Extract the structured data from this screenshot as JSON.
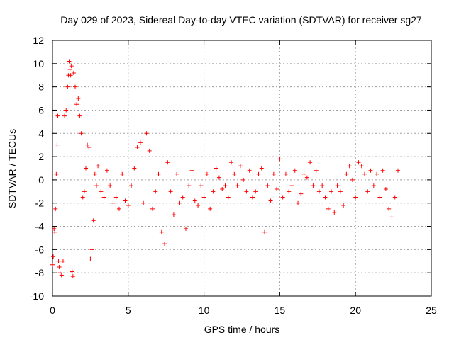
{
  "chart_data": {
    "type": "scatter",
    "title": "Day 029 of 2023, Sidereal Day-to-day VTEC variation (SDTVAR) for receiver sg27",
    "xlabel": "GPS time / hours",
    "ylabel": "SDTVAR / TECUs",
    "xlim": [
      0,
      25
    ],
    "ylim": [
      -10,
      12
    ],
    "xticks": [
      0,
      5,
      10,
      15,
      20,
      25
    ],
    "yticks": [
      -10,
      -8,
      -6,
      -4,
      -2,
      0,
      2,
      4,
      6,
      8,
      10,
      12
    ],
    "xtick_labels": [
      "0",
      "5",
      "10",
      "15",
      "20",
      "25"
    ],
    "ytick_labels": [
      "-10",
      "-8",
      "-6",
      "-4",
      "-2",
      "0",
      "2",
      "4",
      "6",
      "8",
      "10",
      "12"
    ],
    "grid": true,
    "marker": "+",
    "color": "#ff0000",
    "series": [
      {
        "name": "SDTVAR sg27",
        "x": [
          0.0,
          0.05,
          0.1,
          0.15,
          0.2,
          0.25,
          0.3,
          0.35,
          0.4,
          0.45,
          0.5,
          0.6,
          0.7,
          0.8,
          0.9,
          1.0,
          1.05,
          1.1,
          1.15,
          1.2,
          1.25,
          1.3,
          1.35,
          1.4,
          1.5,
          1.6,
          1.7,
          1.8,
          1.9,
          2.0,
          2.1,
          2.2,
          2.3,
          2.4,
          2.5,
          2.6,
          2.7,
          2.8,
          2.9,
          3.0,
          3.2,
          3.4,
          3.6,
          3.8,
          4.0,
          4.2,
          4.4,
          4.6,
          4.8,
          5.0,
          5.2,
          5.4,
          5.6,
          5.8,
          6.0,
          6.2,
          6.4,
          6.6,
          6.8,
          7.0,
          7.2,
          7.4,
          7.6,
          7.8,
          8.0,
          8.2,
          8.4,
          8.6,
          8.8,
          9.0,
          9.2,
          9.4,
          9.6,
          9.8,
          10.0,
          10.2,
          10.4,
          10.6,
          10.8,
          11.0,
          11.2,
          11.4,
          11.6,
          11.8,
          12.0,
          12.2,
          12.4,
          12.6,
          12.8,
          13.0,
          13.2,
          13.4,
          13.6,
          13.8,
          14.0,
          14.2,
          14.4,
          14.6,
          14.8,
          15.0,
          15.2,
          15.4,
          15.6,
          15.8,
          16.0,
          16.2,
          16.4,
          16.6,
          16.8,
          17.0,
          17.2,
          17.4,
          17.6,
          17.8,
          18.0,
          18.2,
          18.4,
          18.6,
          18.8,
          19.0,
          19.2,
          19.4,
          19.6,
          19.8,
          20.0,
          20.2,
          20.4,
          20.6,
          20.8,
          21.0,
          21.2,
          21.4,
          21.6,
          21.8,
          22.0,
          22.2,
          22.4,
          22.6,
          22.8
        ],
        "y": [
          -7.3,
          -6.6,
          -4.2,
          -4.5,
          -2.5,
          0.5,
          3.0,
          5.5,
          -7.0,
          -7.5,
          -8.0,
          -8.2,
          -7.0,
          5.5,
          6.0,
          8.0,
          9.0,
          10.2,
          9.5,
          9.0,
          9.8,
          -7.9,
          -8.3,
          9.2,
          8.0,
          6.5,
          7.0,
          5.5,
          4.0,
          -1.5,
          -1.0,
          1.0,
          3.0,
          2.8,
          -6.8,
          -6.0,
          -3.5,
          0.5,
          -0.5,
          1.2,
          -1.0,
          -1.5,
          0.8,
          -0.5,
          -2.0,
          -1.5,
          -2.5,
          0.5,
          -1.8,
          -2.2,
          -0.5,
          1.0,
          2.8,
          3.2,
          -2.0,
          4.0,
          2.5,
          -2.5,
          -1.0,
          0.5,
          -4.5,
          -5.5,
          1.5,
          -1.0,
          -3.0,
          0.5,
          -2.0,
          -1.5,
          -4.2,
          -0.5,
          0.8,
          -1.8,
          -2.2,
          -0.5,
          -1.5,
          0.5,
          -2.5,
          -1.0,
          1.0,
          0.2,
          -0.8,
          -0.5,
          -1.5,
          1.5,
          0.5,
          -0.5,
          1.2,
          0.0,
          -1.0,
          0.8,
          -1.5,
          -1.0,
          0.5,
          1.0,
          -4.5,
          -0.5,
          -1.8,
          0.5,
          -0.8,
          1.8,
          -1.5,
          0.5,
          -1.0,
          -0.5,
          0.8,
          -2.0,
          -1.2,
          0.5,
          0.2,
          1.5,
          -0.5,
          0.8,
          -1.0,
          -0.5,
          -1.5,
          -2.5,
          -1.0,
          -2.8,
          -0.5,
          -1.0,
          -2.2,
          0.5,
          1.2,
          0.0,
          -1.5,
          1.5,
          1.2,
          0.5,
          -1.0,
          0.8,
          -0.5,
          0.5,
          -1.5,
          0.8,
          -0.8,
          -2.5,
          -3.2,
          -1.5,
          0.8
        ]
      }
    ]
  }
}
